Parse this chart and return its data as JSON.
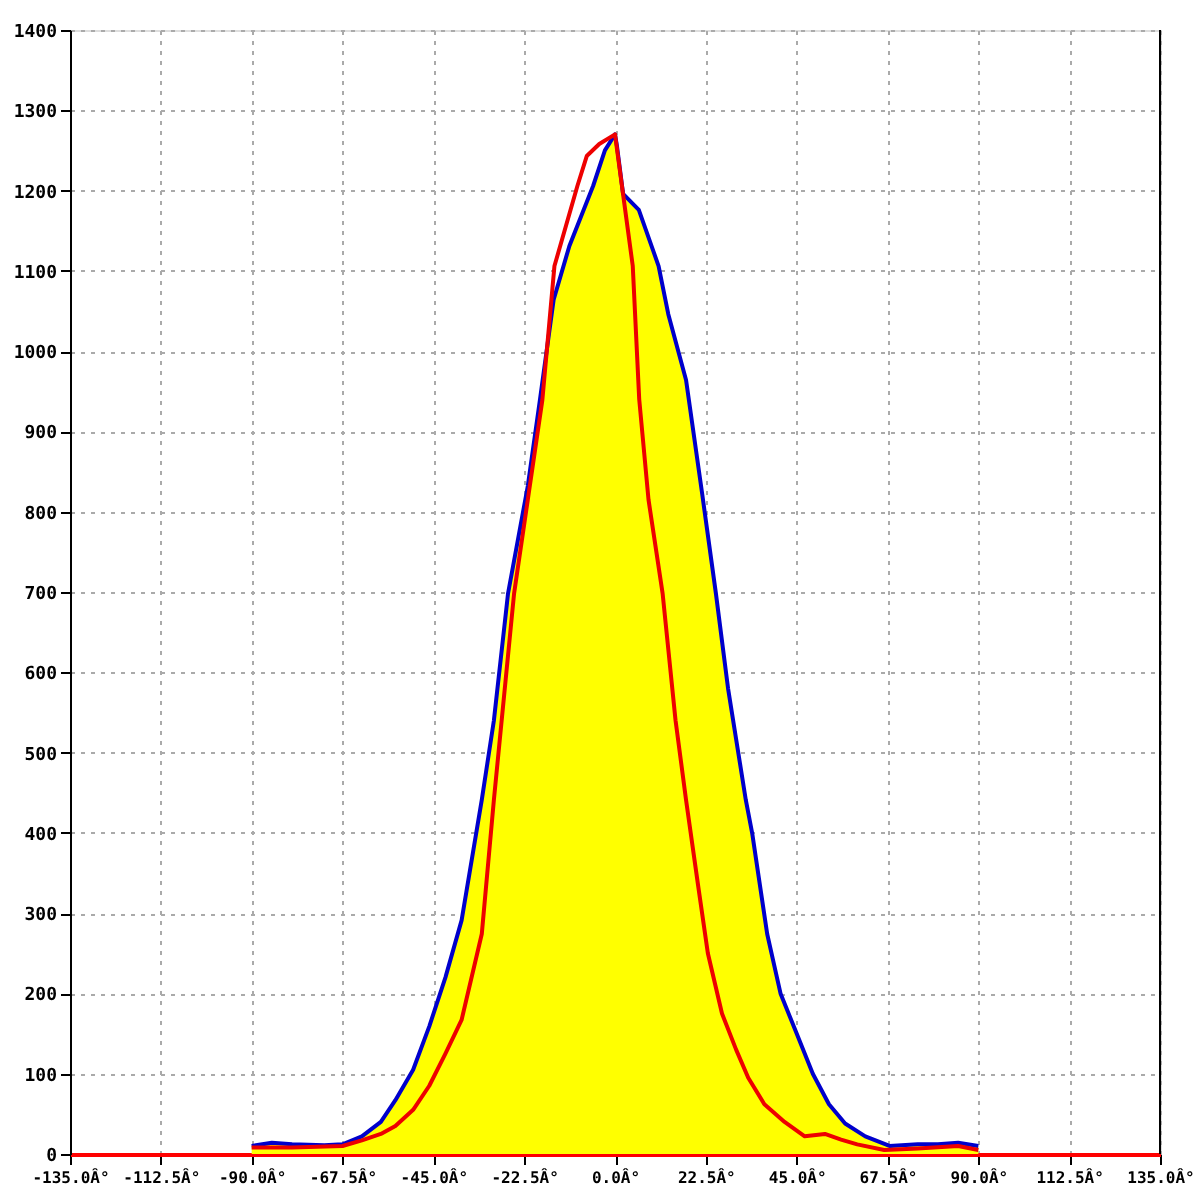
{
  "chart_data": {
    "type": "line",
    "xlim": [
      -135,
      135
    ],
    "xticks": [
      {
        "value": -135,
        "label": "-135.0Â°"
      },
      {
        "value": -112.5,
        "label": "-112.5Â°"
      },
      {
        "value": -90,
        "label": "-90.0Â°"
      },
      {
        "value": -67.5,
        "label": "-67.5Â°"
      },
      {
        "value": -45,
        "label": "-45.0Â°"
      },
      {
        "value": -22.5,
        "label": "-22.5Â°"
      },
      {
        "value": 0,
        "label": "0.0Â°"
      },
      {
        "value": 22.5,
        "label": "22.5Â°"
      },
      {
        "value": 45,
        "label": "45.0Â°"
      },
      {
        "value": 67.5,
        "label": "67.5Â°"
      },
      {
        "value": 90,
        "label": "90.0Â°"
      },
      {
        "value": 112.5,
        "label": "112.5Â°"
      },
      {
        "value": 135,
        "label": "135.0Â°"
      }
    ],
    "ylim": [
      0,
      1400
    ],
    "yticks": [
      0,
      100,
      200,
      300,
      400,
      500,
      600,
      700,
      800,
      900,
      1000,
      1100,
      1200,
      1300,
      1400
    ],
    "grid": true,
    "series": [
      {
        "type": "area",
        "color": "#ffff00",
        "x": [
          -90,
          -85,
          -80,
          -72,
          -67.5,
          -62.7,
          -58,
          -54.4,
          -50,
          -46,
          -42,
          -38,
          -33,
          -30,
          -26.5,
          -21.6,
          -18.6,
          -15.2,
          -11.3,
          -5.4,
          -2.5,
          0,
          0.5,
          2,
          5.9,
          10.8,
          13.2,
          17.6,
          21.6,
          25,
          28,
          32.4,
          34,
          37.7,
          41,
          45,
          49,
          53,
          57,
          62,
          68,
          75,
          80,
          85,
          90
        ],
        "values": [
          10,
          14,
          12,
          11,
          12,
          22,
          40,
          67,
          105,
          159,
          220,
          291,
          441,
          540,
          698,
          832,
          939,
          1064,
          1131,
          1206,
          1250,
          1270,
          1255,
          1196,
          1176,
          1106,
          1046,
          964,
          822,
          698,
          580,
          441,
          399,
          274,
          200,
          150,
          100,
          62,
          38,
          22,
          10,
          12,
          12,
          14,
          10
        ]
      },
      {
        "type": "line",
        "color": "#0000cc",
        "x": [
          -90,
          -85,
          -80,
          -72,
          -67.5,
          -62.7,
          -58,
          -54.4,
          -50,
          -46,
          -42,
          -38,
          -33,
          -30,
          -26.5,
          -21.6,
          -18.6,
          -15.2,
          -11.3,
          -5.4,
          -2.5,
          0,
          0.5,
          2,
          5.9,
          10.8,
          13.2,
          17.6,
          21.6,
          25,
          28,
          32.4,
          34,
          37.7,
          41,
          45,
          49,
          53,
          57,
          62,
          68,
          75,
          80,
          85,
          90
        ],
        "values": [
          10,
          14,
          12,
          11,
          12,
          22,
          40,
          67,
          105,
          159,
          220,
          291,
          441,
          540,
          698,
          832,
          939,
          1064,
          1131,
          1206,
          1250,
          1270,
          1255,
          1196,
          1176,
          1106,
          1046,
          964,
          822,
          698,
          580,
          441,
          399,
          274,
          200,
          150,
          100,
          62,
          38,
          22,
          10,
          12,
          12,
          14,
          10
        ]
      },
      {
        "type": "line",
        "color": "#ee0000",
        "x": [
          -90,
          -80,
          -67.5,
          -62.7,
          -58,
          -54.4,
          -50,
          -46,
          -42,
          -38,
          -33,
          -30,
          -25,
          -21.6,
          -18,
          -15,
          -9.3,
          -7,
          -3.9,
          0,
          4.4,
          6,
          8.3,
          11.8,
          15,
          17.6,
          20.6,
          23,
          26.5,
          30,
          33,
          37,
          42,
          47,
          52,
          56,
          60,
          66.7,
          75,
          85,
          90
        ],
        "values": [
          8,
          8,
          10,
          17,
          25,
          35,
          55,
          85,
          125,
          167,
          274,
          441,
          698,
          815,
          939,
          1106,
          1206,
          1243,
          1258,
          1270,
          1106,
          940,
          815,
          698,
          540,
          441,
          334,
          250,
          175,
          130,
          95,
          62,
          40,
          22,
          25,
          18,
          12,
          5,
          7,
          10,
          5
        ]
      }
    ]
  }
}
